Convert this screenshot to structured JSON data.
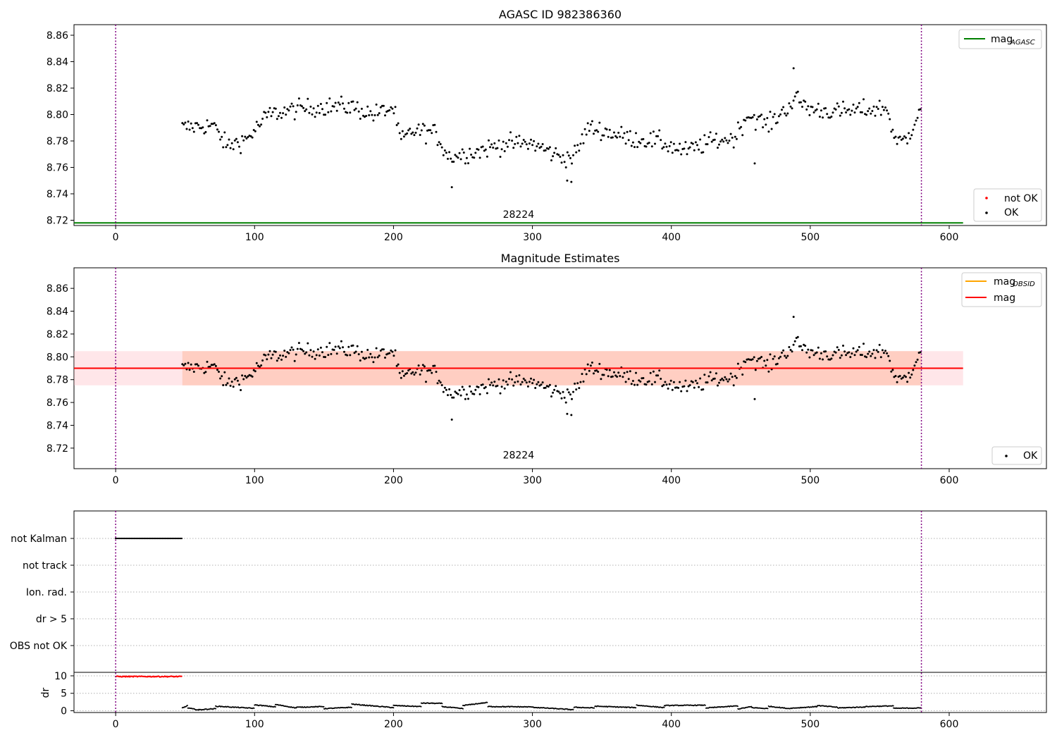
{
  "chart_data": [
    {
      "type": "scatter",
      "title": "AGASC ID 982386360",
      "xlim": [
        -30,
        670
      ],
      "ylim": [
        8.716,
        8.868
      ],
      "xticks": [
        0,
        100,
        200,
        300,
        400,
        500,
        600
      ],
      "yticks": [
        8.72,
        8.74,
        8.76,
        8.78,
        8.8,
        8.82,
        8.84,
        8.86
      ],
      "vlines": [
        0,
        580
      ],
      "hline": {
        "label": "mag",
        "label_sub": "AGASC",
        "y": 8.718,
        "x": [
          -30,
          610
        ],
        "color": "#008000"
      },
      "annotation": {
        "text": "28224",
        "x": 290,
        "y": 8.722
      },
      "legend_lines": [
        {
          "label": "mag",
          "label_sub": "AGASC",
          "color": "#008000"
        }
      ],
      "legend_points": [
        {
          "label": "not OK",
          "color": "#ff0000"
        },
        {
          "label": "OK",
          "color": "#000000"
        }
      ]
    },
    {
      "type": "scatter",
      "title": "Magnitude Estimates",
      "xlim": [
        -30,
        670
      ],
      "ylim": [
        8.702,
        8.878
      ],
      "xticks": [
        0,
        100,
        200,
        300,
        400,
        500,
        600
      ],
      "yticks": [
        8.72,
        8.74,
        8.76,
        8.78,
        8.8,
        8.82,
        8.84,
        8.86
      ],
      "vlines": [
        0,
        580
      ],
      "band_mag": {
        "x": [
          -30,
          610
        ],
        "y": [
          8.775,
          8.805
        ],
        "color": "#ffb6c1"
      },
      "band_obsid": {
        "x": [
          48,
          580
        ],
        "y": [
          8.775,
          8.805
        ],
        "color": "#ffa07a"
      },
      "mag_line": {
        "y": 8.79,
        "x": [
          -30,
          610
        ],
        "color": "#ff0000"
      },
      "obsid_line": {
        "y": 8.79,
        "x": [
          48,
          580
        ],
        "color": "#ffa500"
      },
      "annotation": {
        "text": "28224",
        "x": 290,
        "y": 8.711
      },
      "legend_lines": [
        {
          "label": "mag",
          "label_sub": "OBSID",
          "color": "#ffa500"
        },
        {
          "label": "mag",
          "label_sub": "",
          "color": "#ff0000"
        }
      ],
      "legend_points": [
        {
          "label": "OK",
          "color": "#000000"
        }
      ]
    },
    {
      "type": "scatter",
      "xlim": [
        -30,
        670
      ],
      "categories": [
        "not Kalman",
        "not track",
        "Ion. rad.",
        "dr > 5",
        "OBS not OK"
      ],
      "flag_ranges": [
        {
          "category": "not Kalman",
          "x": [
            0,
            48
          ]
        }
      ],
      "vlines": [
        0,
        580
      ]
    },
    {
      "type": "scatter",
      "ylabel": "dr",
      "xlim": [
        -30,
        670
      ],
      "ylim": [
        -0.5,
        11
      ],
      "yticks": [
        0,
        5,
        10
      ],
      "xticks": [
        0,
        100,
        200,
        300,
        400,
        500,
        600
      ],
      "vlines": [
        0,
        580
      ],
      "red_segment": {
        "x": [
          0,
          48
        ],
        "y": 9.8
      },
      "black_segments": [
        {
          "x": [
            48,
            52
          ],
          "y": [
            0.8,
            1.5
          ]
        },
        {
          "x": [
            52,
            60
          ],
          "y": [
            0.8,
            0.2
          ]
        },
        {
          "x": [
            60,
            72
          ],
          "y": [
            0.3,
            0.6
          ]
        },
        {
          "x": [
            72,
            100
          ],
          "y": [
            1.3,
            0.7
          ]
        },
        {
          "x": [
            100,
            115
          ],
          "y": [
            1.7,
            1.1
          ]
        },
        {
          "x": [
            115,
            130
          ],
          "y": [
            1.8,
            0.8
          ]
        },
        {
          "x": [
            130,
            150
          ],
          "y": [
            1.0,
            1.2
          ]
        },
        {
          "x": [
            150,
            170
          ],
          "y": [
            0.6,
            1.0
          ]
        },
        {
          "x": [
            170,
            200
          ],
          "y": [
            1.9,
            0.9
          ]
        },
        {
          "x": [
            200,
            220
          ],
          "y": [
            1.5,
            1.2
          ]
        },
        {
          "x": [
            220,
            235
          ],
          "y": [
            2.2,
            2.1
          ]
        },
        {
          "x": [
            235,
            250
          ],
          "y": [
            1.2,
            0.6
          ]
        },
        {
          "x": [
            250,
            268
          ],
          "y": [
            1.5,
            2.4
          ]
        },
        {
          "x": [
            268,
            300
          ],
          "y": [
            1.2,
            1.1
          ]
        },
        {
          "x": [
            300,
            330
          ],
          "y": [
            1.0,
            0.3
          ]
        },
        {
          "x": [
            330,
            345
          ],
          "y": [
            1.0,
            0.8
          ]
        },
        {
          "x": [
            345,
            375
          ],
          "y": [
            1.3,
            0.9
          ]
        },
        {
          "x": [
            375,
            395
          ],
          "y": [
            1.6,
            0.9
          ]
        },
        {
          "x": [
            395,
            425
          ],
          "y": [
            1.5,
            1.6
          ]
        },
        {
          "x": [
            425,
            448
          ],
          "y": [
            0.8,
            1.4
          ]
        },
        {
          "x": [
            448,
            458
          ],
          "y": [
            0.5,
            1.2
          ]
        },
        {
          "x": [
            458,
            470
          ],
          "y": [
            0.9,
            0.6
          ]
        },
        {
          "x": [
            470,
            485
          ],
          "y": [
            1.3,
            0.6
          ]
        },
        {
          "x": [
            485,
            505
          ],
          "y": [
            0.7,
            1.2
          ]
        },
        {
          "x": [
            505,
            520
          ],
          "y": [
            1.5,
            1.0
          ]
        },
        {
          "x": [
            520,
            540
          ],
          "y": [
            0.8,
            1.1
          ]
        },
        {
          "x": [
            540,
            560
          ],
          "y": [
            1.2,
            1.4
          ]
        },
        {
          "x": [
            560,
            580
          ],
          "y": [
            0.7,
            0.8
          ]
        }
      ]
    }
  ]
}
